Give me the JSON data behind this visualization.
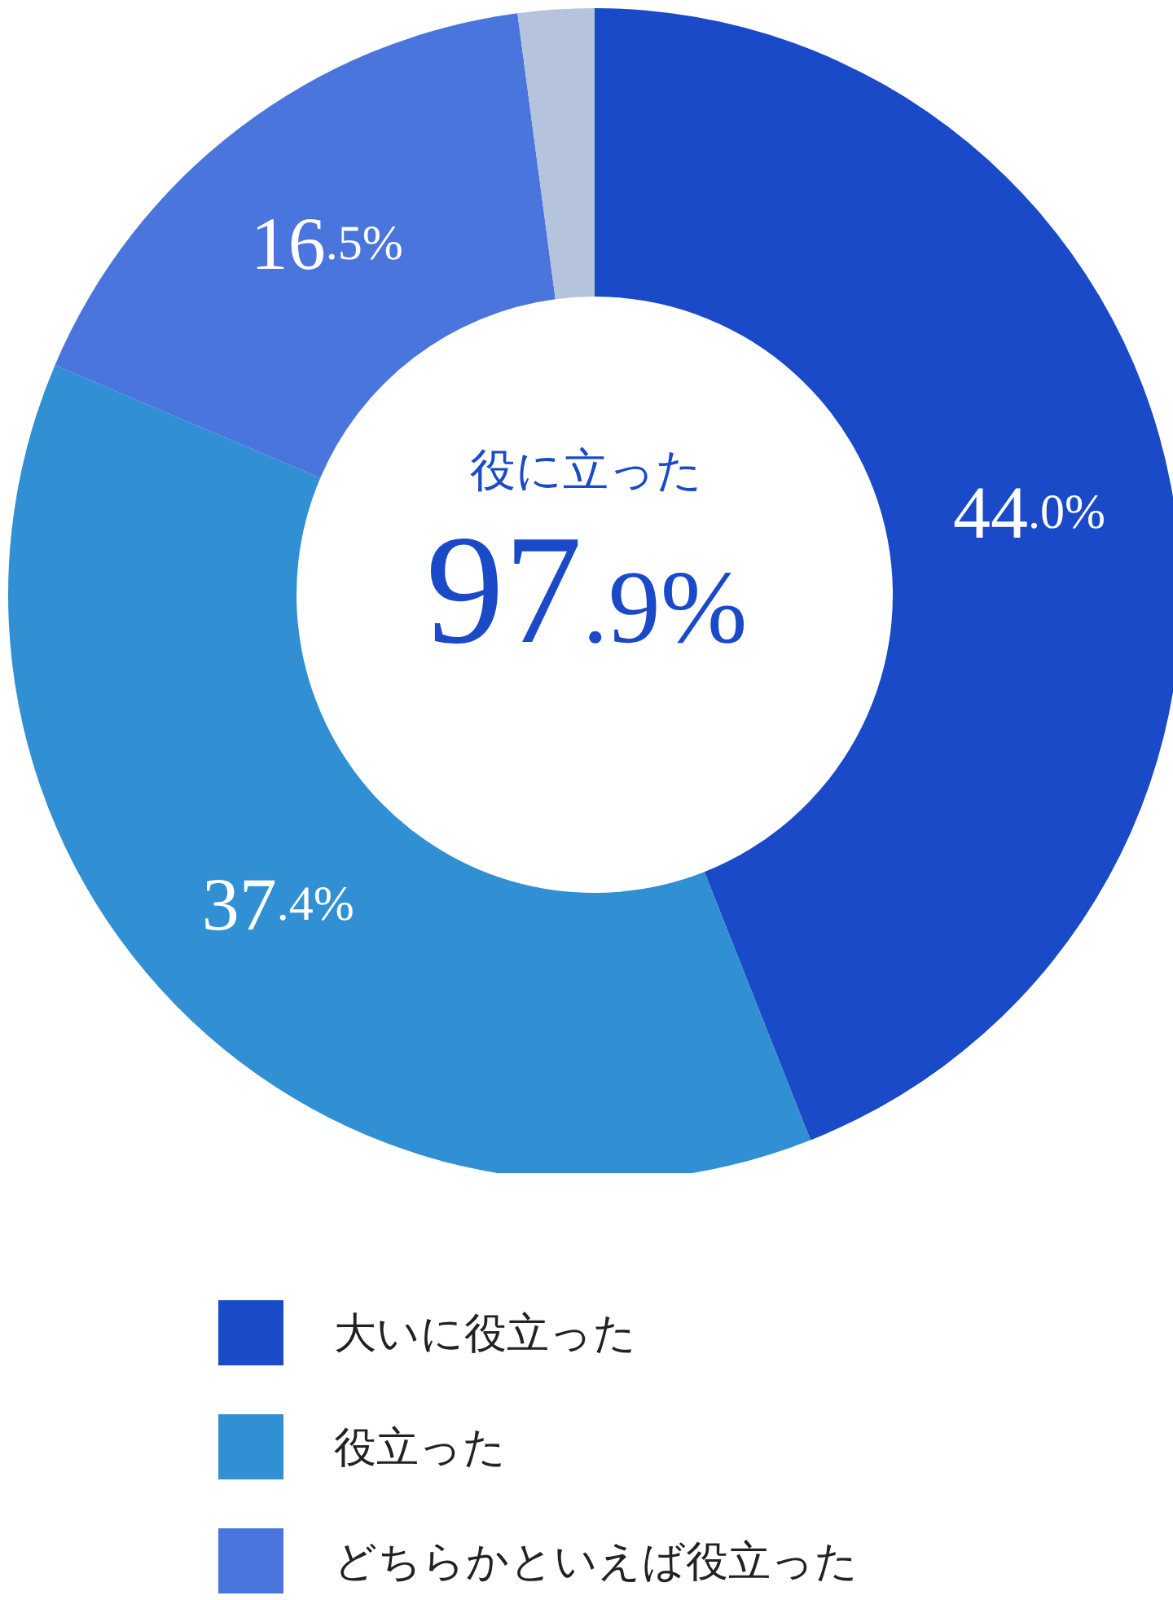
{
  "chart_data": {
    "type": "donut",
    "categories": [
      "大いに役立った",
      "役立った",
      "どちらかといえば役立った",
      null
    ],
    "values": [
      44.0,
      37.4,
      16.5,
      2.1
    ],
    "colors": [
      "#1a4ac8",
      "#318fd4",
      "#4a75dc",
      "#b6c3dc"
    ],
    "value_labels": [
      "44.0%",
      "37.4%",
      "16.5%",
      null
    ],
    "annotations": [
      "役に立った",
      "97.9%"
    ],
    "legend": "bottom"
  }
}
